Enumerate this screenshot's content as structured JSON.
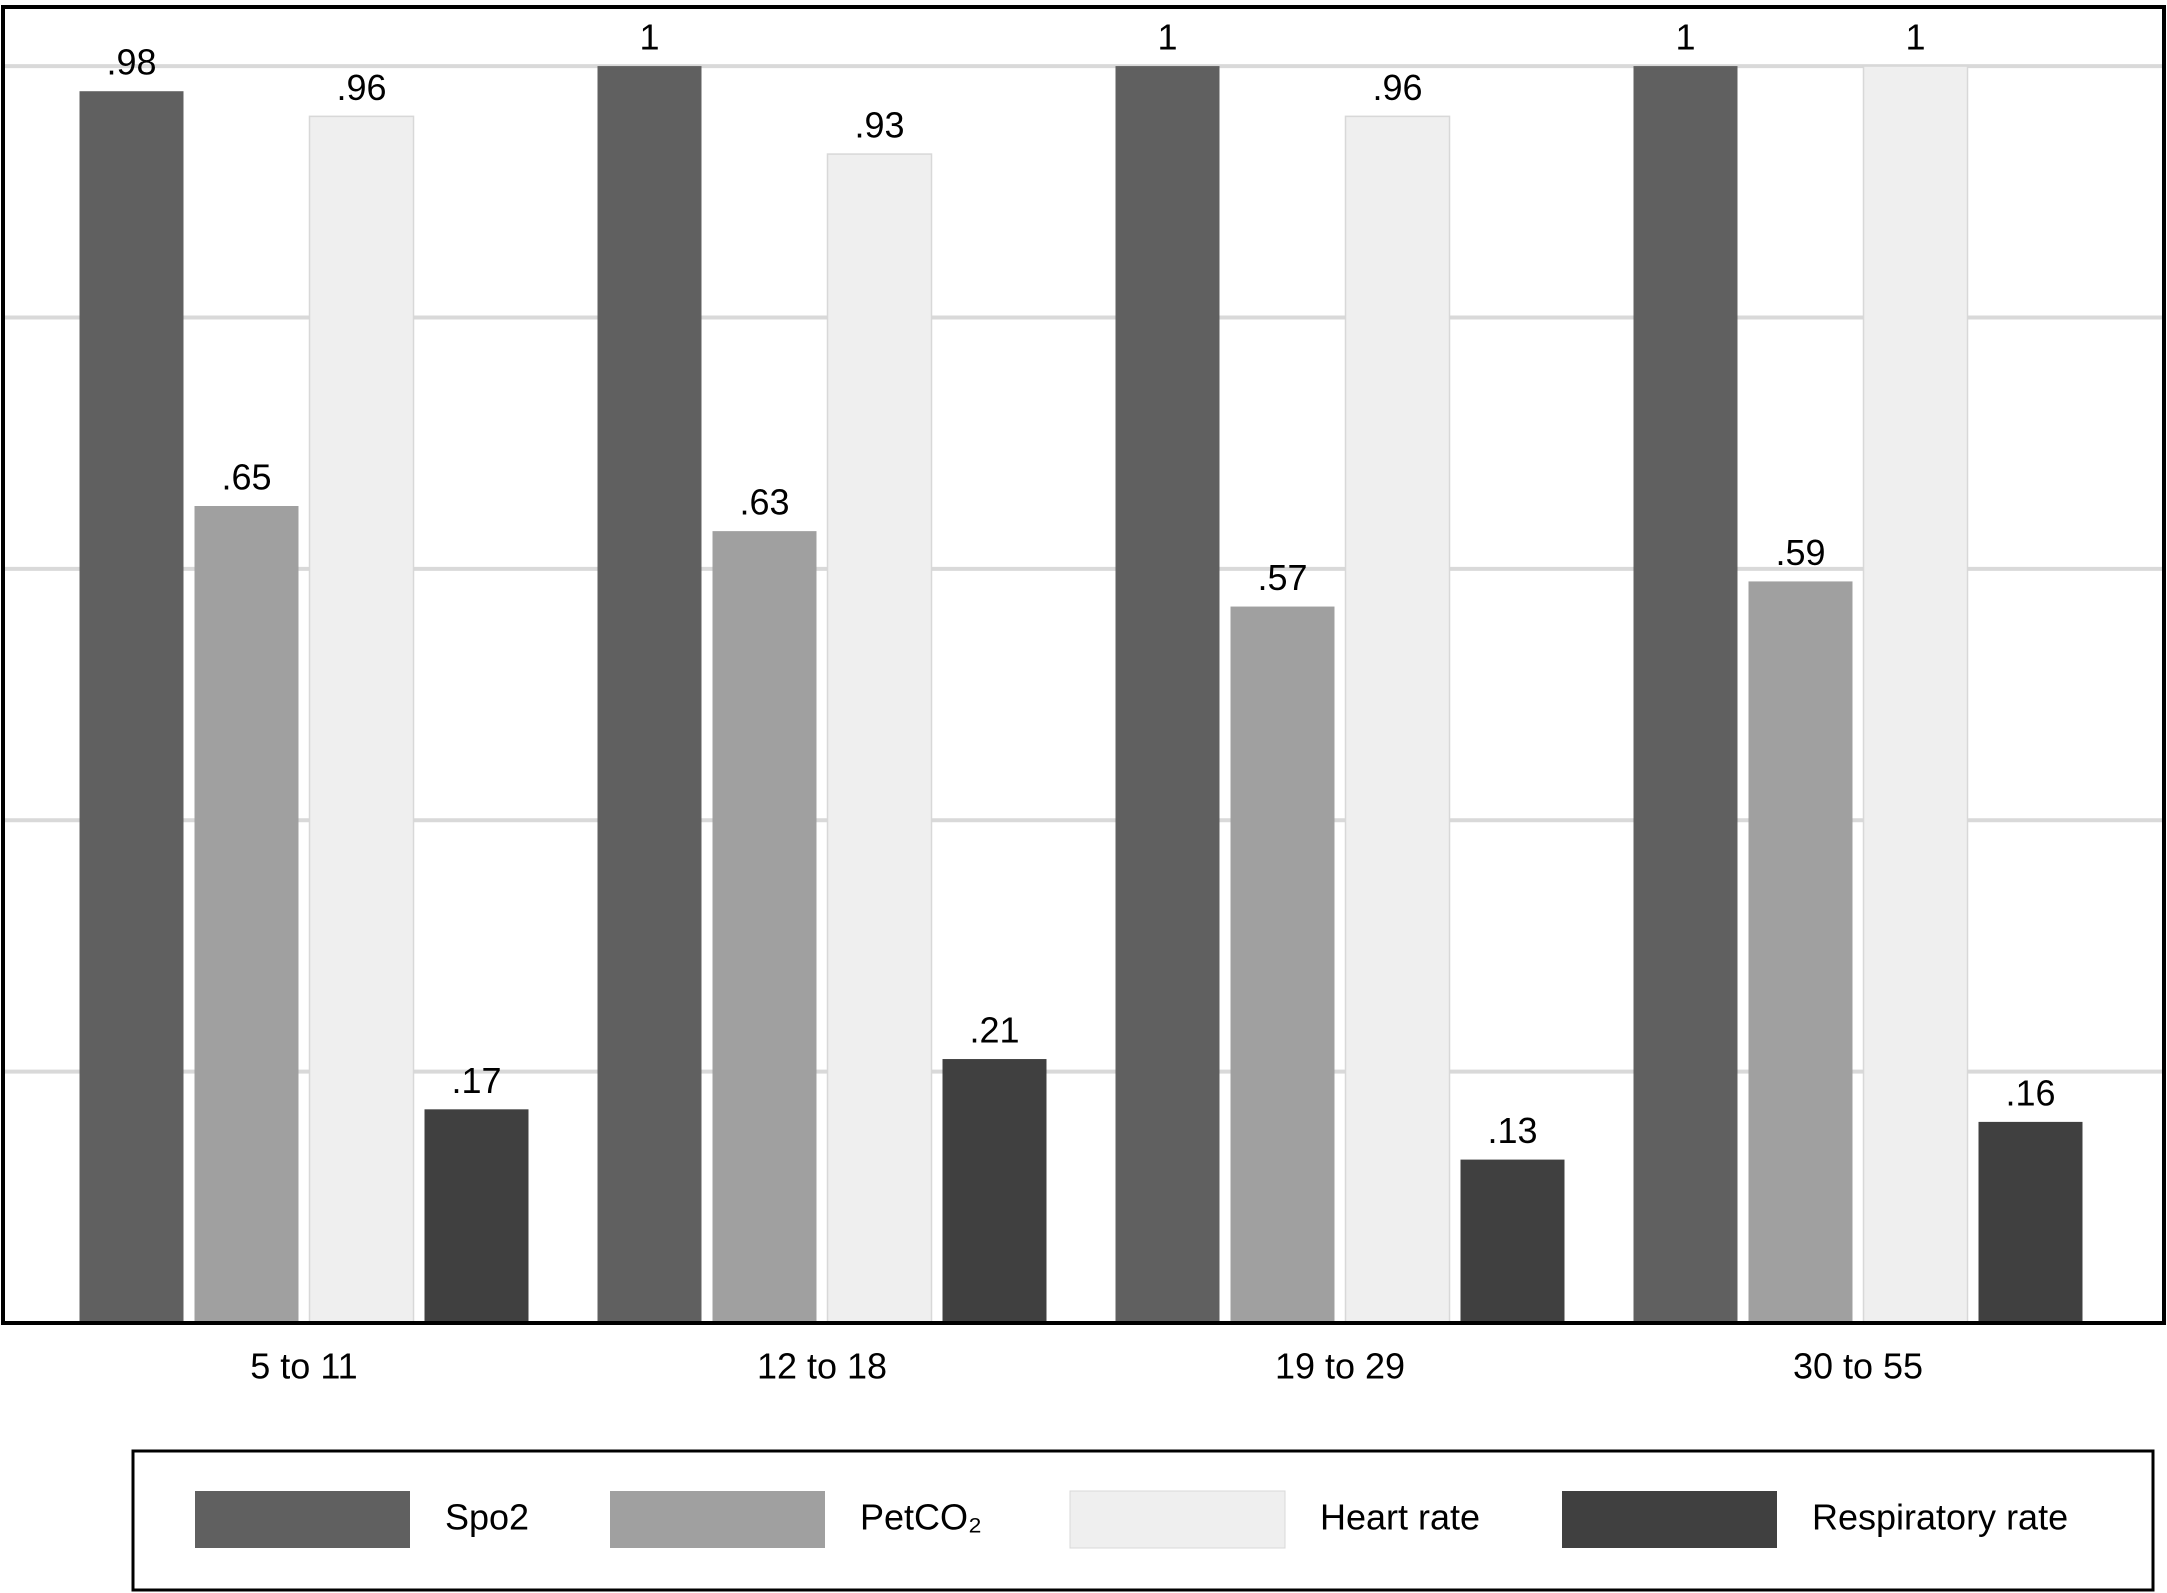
{
  "chart_data": {
    "type": "bar",
    "categories": [
      "5 to 11",
      "12 to 18",
      "19 to 29",
      "30 to 55"
    ],
    "series": [
      {
        "name": "Spo2",
        "color": "#606060",
        "values": [
          0.98,
          1,
          1,
          1
        ],
        "value_labels": [
          ".98",
          "1",
          "1",
          "1"
        ]
      },
      {
        "name": "PetCO₂",
        "color": "#a0a0a0",
        "values": [
          0.65,
          0.63,
          0.57,
          0.59
        ],
        "value_labels": [
          ".65",
          ".63",
          ".57",
          ".59"
        ]
      },
      {
        "name": "Heart rate",
        "color": "#efefef",
        "values": [
          0.96,
          0.93,
          0.96,
          1
        ],
        "value_labels": [
          ".96",
          ".93",
          ".96",
          "1"
        ]
      },
      {
        "name": "Respiratory rate",
        "color": "#404040",
        "values": [
          0.17,
          0.21,
          0.13,
          0.16
        ],
        "value_labels": [
          ".17",
          ".21",
          ".13",
          ".16"
        ]
      }
    ],
    "ylim": [
      0,
      1.047
    ],
    "yticks": [
      0,
      0.2,
      0.4,
      0.6,
      0.8,
      1
    ],
    "grid": true,
    "legend": "bottom"
  }
}
